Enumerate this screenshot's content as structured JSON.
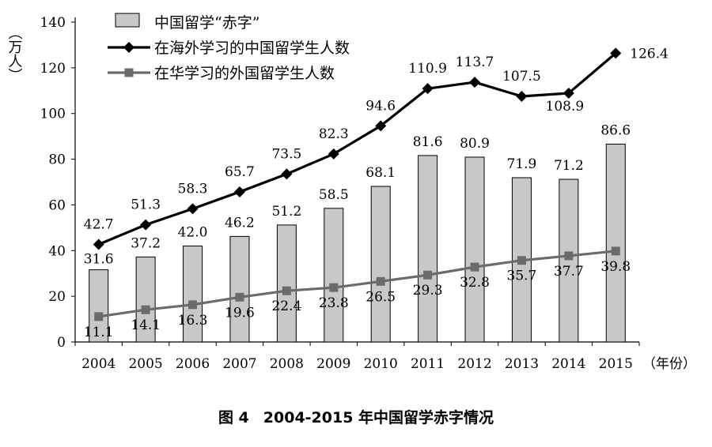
{
  "chart_data": {
    "type": "bar",
    "categories": [
      "2004",
      "2005",
      "2006",
      "2007",
      "2008",
      "2009",
      "2010",
      "2011",
      "2012",
      "2013",
      "2014",
      "2015"
    ],
    "series": [
      {
        "name": "中国留学“赤字”",
        "kind": "bar",
        "color": "#c8c8c8",
        "values": [
          31.6,
          37.2,
          42.0,
          46.2,
          51.2,
          58.5,
          68.1,
          81.6,
          80.9,
          71.9,
          71.2,
          86.6
        ],
        "labels": [
          "31.6",
          "37.2",
          "42.0",
          "46.2",
          "51.2",
          "58.5",
          "68.1",
          "81.6",
          "80.9",
          "71.9",
          "71.2",
          "86.6"
        ]
      },
      {
        "name": "在海外学习的中国留学生人数",
        "kind": "line",
        "marker": "diamond",
        "color": "#000000",
        "values": [
          42.7,
          51.3,
          58.3,
          65.7,
          73.5,
          82.3,
          94.6,
          110.9,
          113.7,
          107.5,
          108.9,
          126.4
        ],
        "labels": [
          "42.7",
          "51.3",
          "58.3",
          "65.7",
          "73.5",
          "82.3",
          "94.6",
          "110.9",
          "113.7",
          "107.5",
          "108.9",
          "126.4"
        ]
      },
      {
        "name": "在华学习的外国留学生人数",
        "kind": "line",
        "marker": "square",
        "color": "#6b6b6b",
        "values": [
          11.1,
          14.1,
          16.3,
          19.6,
          22.4,
          23.8,
          26.5,
          29.3,
          32.8,
          35.7,
          37.7,
          39.8
        ],
        "labels": [
          "11.1",
          "14.1",
          "16.3",
          "19.6",
          "22.4",
          "23.8",
          "26.5",
          "29.3",
          "32.8",
          "35.7",
          "37.7",
          "39.8"
        ]
      }
    ],
    "ylim": [
      0,
      140
    ],
    "yticks": [
      "0",
      "20",
      "40",
      "60",
      "80",
      "100",
      "120",
      "140"
    ],
    "ylabel": "（万人）",
    "xlabel": "（年份）",
    "grid": false,
    "legend": "top-left"
  },
  "caption": {
    "number": "图 4",
    "title": "2004-2015 年中国留学赤字情况"
  }
}
